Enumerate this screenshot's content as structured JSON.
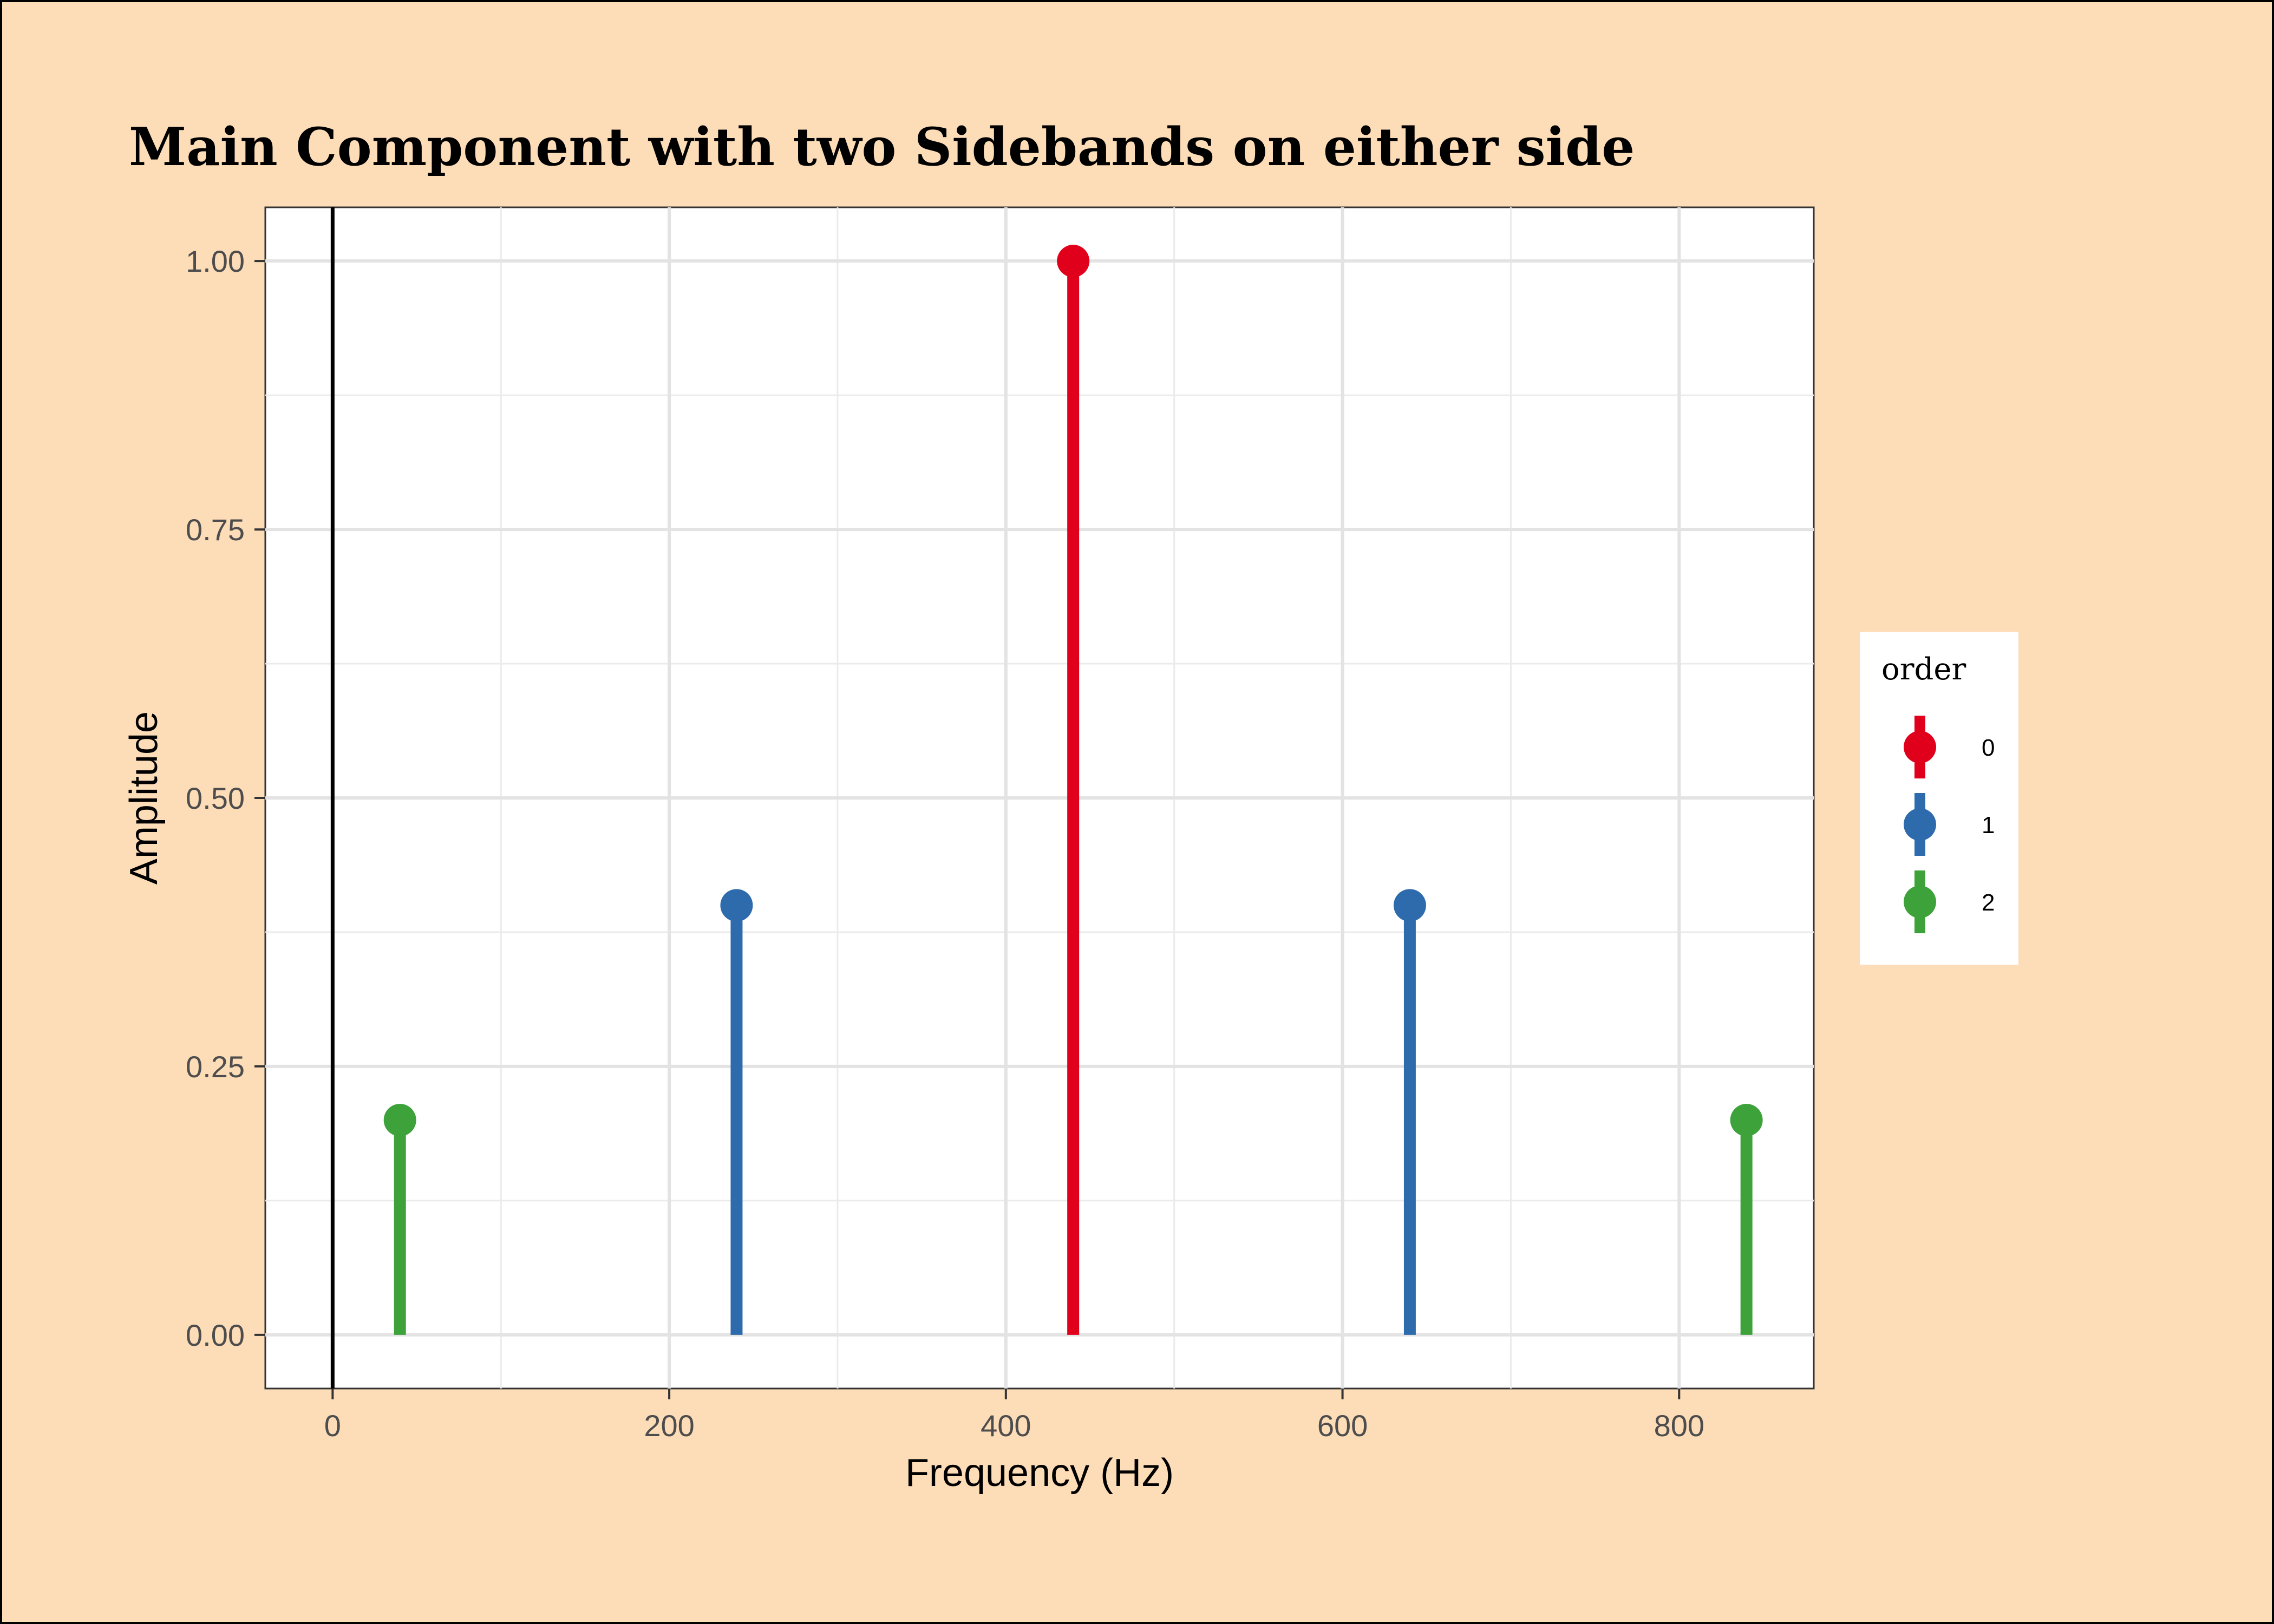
{
  "chart_data": {
    "type": "lollipop",
    "title": "Main Component with two Sidebands on either side",
    "xlabel": "Frequency (Hz)",
    "ylabel": "Amplitude",
    "xlim": [
      -40,
      880
    ],
    "ylim": [
      -0.05,
      1.05
    ],
    "x_ticks": [
      0,
      200,
      400,
      600,
      800
    ],
    "x_tick_labels": [
      "0",
      "200",
      "400",
      "600",
      "800"
    ],
    "y_ticks": [
      0,
      0.25,
      0.5,
      0.75,
      1.0
    ],
    "y_tick_labels": [
      "0.00",
      "0.25",
      "0.50",
      "0.75",
      "1.00"
    ],
    "grid": true,
    "vline_x": 0,
    "legend": {
      "title": "order",
      "placement": "right",
      "entries": [
        {
          "label": "0",
          "color": "#e0001b"
        },
        {
          "label": "1",
          "color": "#2e6bad"
        },
        {
          "label": "2",
          "color": "#3da23a"
        }
      ]
    },
    "points": [
      {
        "x": 40,
        "y": 0.2,
        "order": "2"
      },
      {
        "x": 240,
        "y": 0.4,
        "order": "1"
      },
      {
        "x": 440,
        "y": 1.0,
        "order": "0"
      },
      {
        "x": 640,
        "y": 0.4,
        "order": "1"
      },
      {
        "x": 840,
        "y": 0.2,
        "order": "2"
      }
    ]
  }
}
